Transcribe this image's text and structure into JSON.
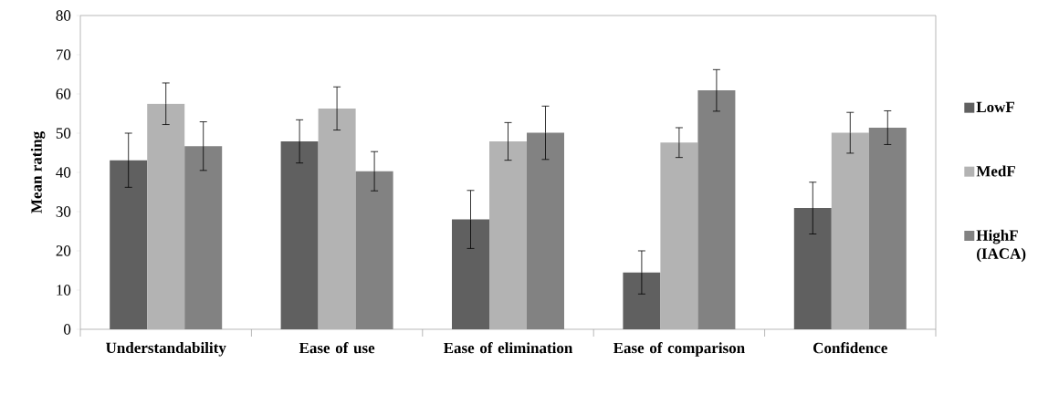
{
  "chart_data": {
    "type": "bar",
    "ylabel": "Mean rating",
    "categories": [
      "Understandability",
      "Ease of use",
      "Ease of elimination",
      "Ease of comparison",
      "Confidence"
    ],
    "series": [
      {
        "name": "LowF",
        "color": "#606060",
        "values": [
          43.1,
          47.9,
          28.0,
          14.5,
          30.9
        ],
        "errors": [
          6.9,
          5.5,
          7.4,
          5.5,
          6.6
        ]
      },
      {
        "name": "MedF",
        "color": "#b3b3b3",
        "values": [
          57.5,
          56.3,
          47.9,
          47.6,
          50.1
        ],
        "errors": [
          5.3,
          5.5,
          4.8,
          3.8,
          5.2
        ]
      },
      {
        "name": "HighF (IACA)",
        "color": "#828282",
        "values": [
          46.7,
          40.3,
          50.1,
          60.9,
          51.4
        ],
        "errors": [
          6.2,
          5.0,
          6.8,
          5.3,
          4.3
        ]
      }
    ],
    "ylim": [
      0,
      80
    ],
    "yticks": [
      0,
      10,
      20,
      30,
      40,
      50,
      60,
      70,
      80
    ],
    "grid": false,
    "legend": "right"
  }
}
